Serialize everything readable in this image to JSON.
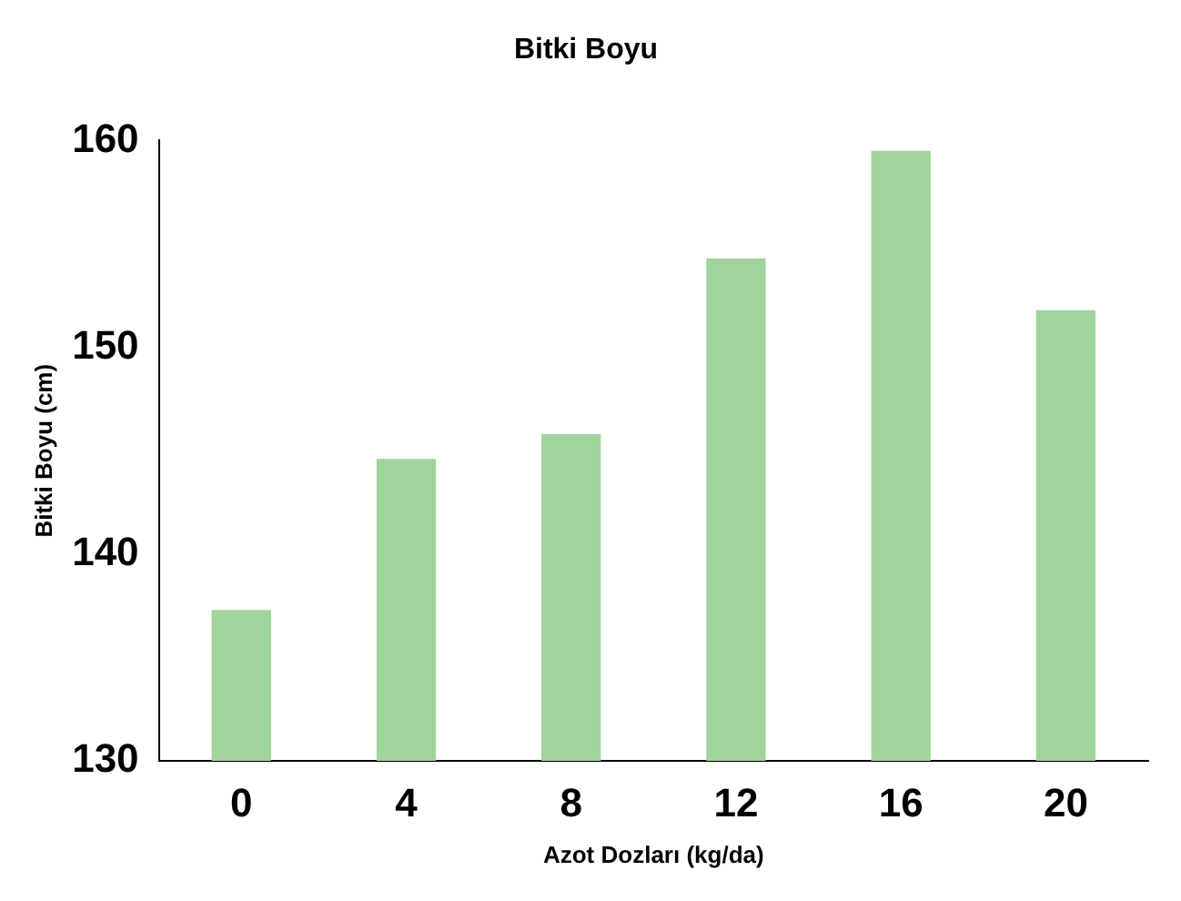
{
  "chart_data": {
    "type": "bar",
    "title": "Bitki Boyu",
    "xlabel": "Azot Dozları (kg/da)",
    "ylabel": "Bitki Boyu (cm)",
    "categories": [
      "0",
      "4",
      "8",
      "12",
      "16",
      "20"
    ],
    "values": [
      137.3,
      144.6,
      145.8,
      154.3,
      159.5,
      151.8
    ],
    "color": "#9fd49a",
    "ylim": [
      130,
      160
    ],
    "yticks": [
      130,
      140,
      150,
      160
    ],
    "grid": false,
    "legend": false
  }
}
